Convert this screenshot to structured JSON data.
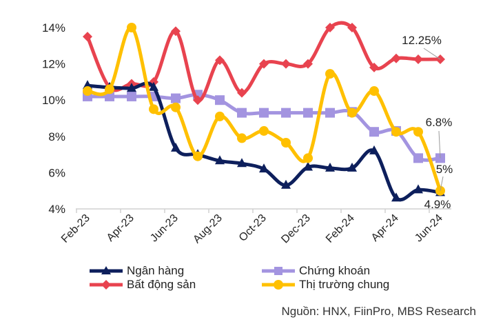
{
  "chart_data": {
    "type": "line",
    "title": "",
    "xlabel": "",
    "ylabel": "",
    "x": [
      "Feb-23",
      "Mar-23",
      "Apr-23",
      "May-23",
      "Jun-23",
      "Jul-23",
      "Aug-23",
      "Sep-23",
      "Oct-23",
      "Nov-23",
      "Dec-23",
      "Jan-24",
      "Feb-24",
      "Mar-24",
      "Apr-24",
      "May-24",
      "Jun-24"
    ],
    "x_tick_labels": [
      "Feb-23",
      "Apr-23",
      "Jun-23",
      "Aug-23",
      "Oct-23",
      "Dec-23",
      "Feb-24",
      "Apr-24",
      "Jun-24"
    ],
    "y_tick_labels": [
      "4%",
      "6%",
      "8%",
      "10%",
      "12%",
      "14%"
    ],
    "ylim": [
      4,
      14
    ],
    "grid": false,
    "legend_position": "bottom",
    "series": [
      {
        "name": "Ngân hàng",
        "color": "#0d1f5c",
        "marker": "triangle",
        "values": [
          10.8,
          10.7,
          10.65,
          10.7,
          7.35,
          7.0,
          6.65,
          6.5,
          6.2,
          5.3,
          6.3,
          6.25,
          6.25,
          7.2,
          4.6,
          5.05,
          4.9
        ]
      },
      {
        "name": "Chứng khoán",
        "color": "#a394e0",
        "marker": "square",
        "values": [
          10.2,
          10.2,
          10.2,
          10.2,
          10.1,
          10.3,
          10.0,
          9.3,
          9.3,
          9.3,
          9.3,
          9.3,
          9.35,
          8.25,
          8.3,
          6.8,
          6.8
        ]
      },
      {
        "name": "Bất động sản",
        "color": "#e8434f",
        "marker": "diamond",
        "values": [
          13.5,
          10.7,
          10.9,
          11.0,
          13.8,
          10.0,
          12.2,
          10.4,
          12.0,
          12.0,
          12.0,
          14.0,
          14.0,
          11.8,
          12.3,
          12.25,
          12.25
        ]
      },
      {
        "name": "Thị trường chung",
        "color": "#ffc000",
        "marker": "circle",
        "values": [
          10.5,
          10.6,
          14.0,
          9.5,
          9.6,
          6.9,
          9.1,
          7.9,
          8.3,
          7.65,
          6.8,
          11.45,
          9.3,
          10.5,
          8.25,
          8.25,
          5.0
        ]
      }
    ],
    "annotations": [
      "12.25%",
      "6.8%",
      "5%",
      "4.9%"
    ]
  },
  "source": "Nguồn: HNX, FiinPro, MBS Research"
}
